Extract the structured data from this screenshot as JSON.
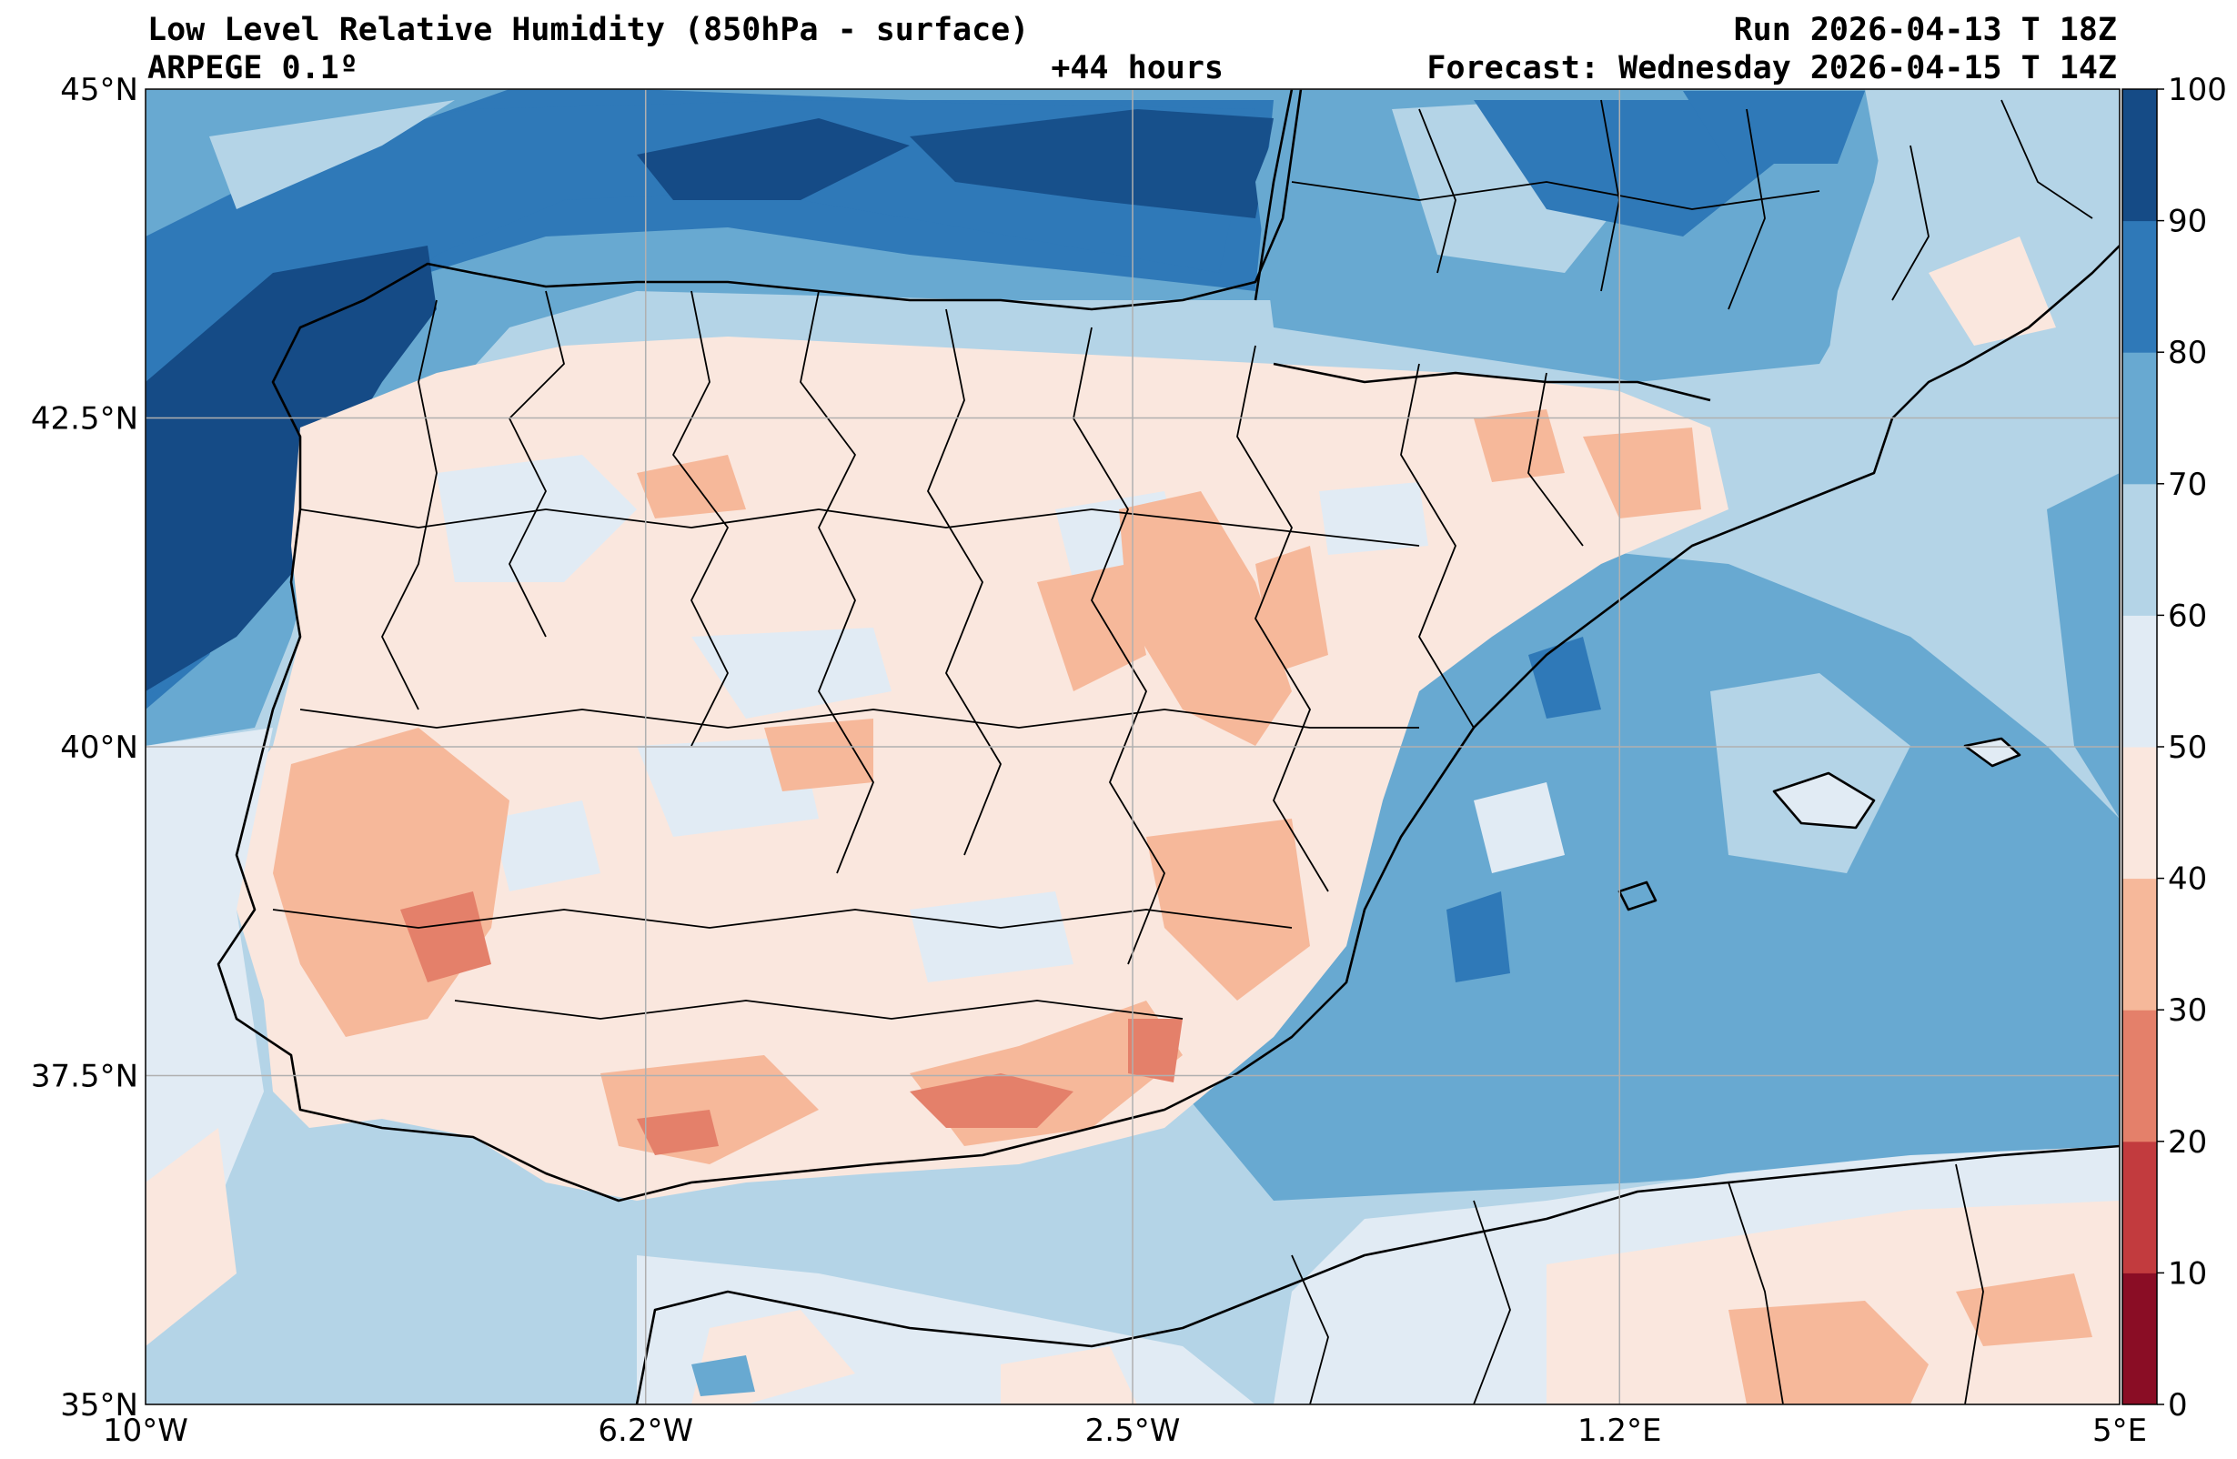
{
  "header": {
    "title_left": "Low Level Relative Humidity (850hPa - surface)",
    "subtitle_left": "ARPEGE 0.1º",
    "lead_time": "+44 hours",
    "run": "Run 2026-04-13 T 18Z",
    "forecast": "Forecast: Wednesday 2026-04-15 T 14Z"
  },
  "chart_data": {
    "type": "heatmap",
    "variable": "Relative Humidity (850hPa - surface)",
    "xlim": [
      -10,
      5
    ],
    "ylim": [
      35,
      45
    ],
    "x_ticks": [
      {
        "value": -10,
        "label": "10°W"
      },
      {
        "value": -6.2,
        "label": "6.2°W"
      },
      {
        "value": -2.5,
        "label": "2.5°W"
      },
      {
        "value": 1.2,
        "label": "1.2°E"
      },
      {
        "value": 5,
        "label": "5°E"
      }
    ],
    "y_ticks": [
      {
        "value": 45,
        "label": "45°N"
      },
      {
        "value": 42.5,
        "label": "42.5°N"
      },
      {
        "value": 40,
        "label": "40°N"
      },
      {
        "value": 37.5,
        "label": "37.5°N"
      },
      {
        "value": 35,
        "label": "35°N"
      }
    ],
    "grid": true,
    "colorbar": {
      "levels": [
        0,
        10,
        20,
        30,
        40,
        50,
        60,
        70,
        80,
        90,
        100
      ],
      "labels": [
        "0",
        "10",
        "20",
        "30",
        "40",
        "50",
        "60",
        "70",
        "80",
        "90",
        "100"
      ],
      "colors": [
        "#8a0d25",
        "#c23b3e",
        "#e4806a",
        "#f6b89a",
        "#fae7de",
        "#e1ebf4",
        "#b4d4e7",
        "#68a9d1",
        "#2f79b8",
        "#154b86"
      ]
    }
  }
}
